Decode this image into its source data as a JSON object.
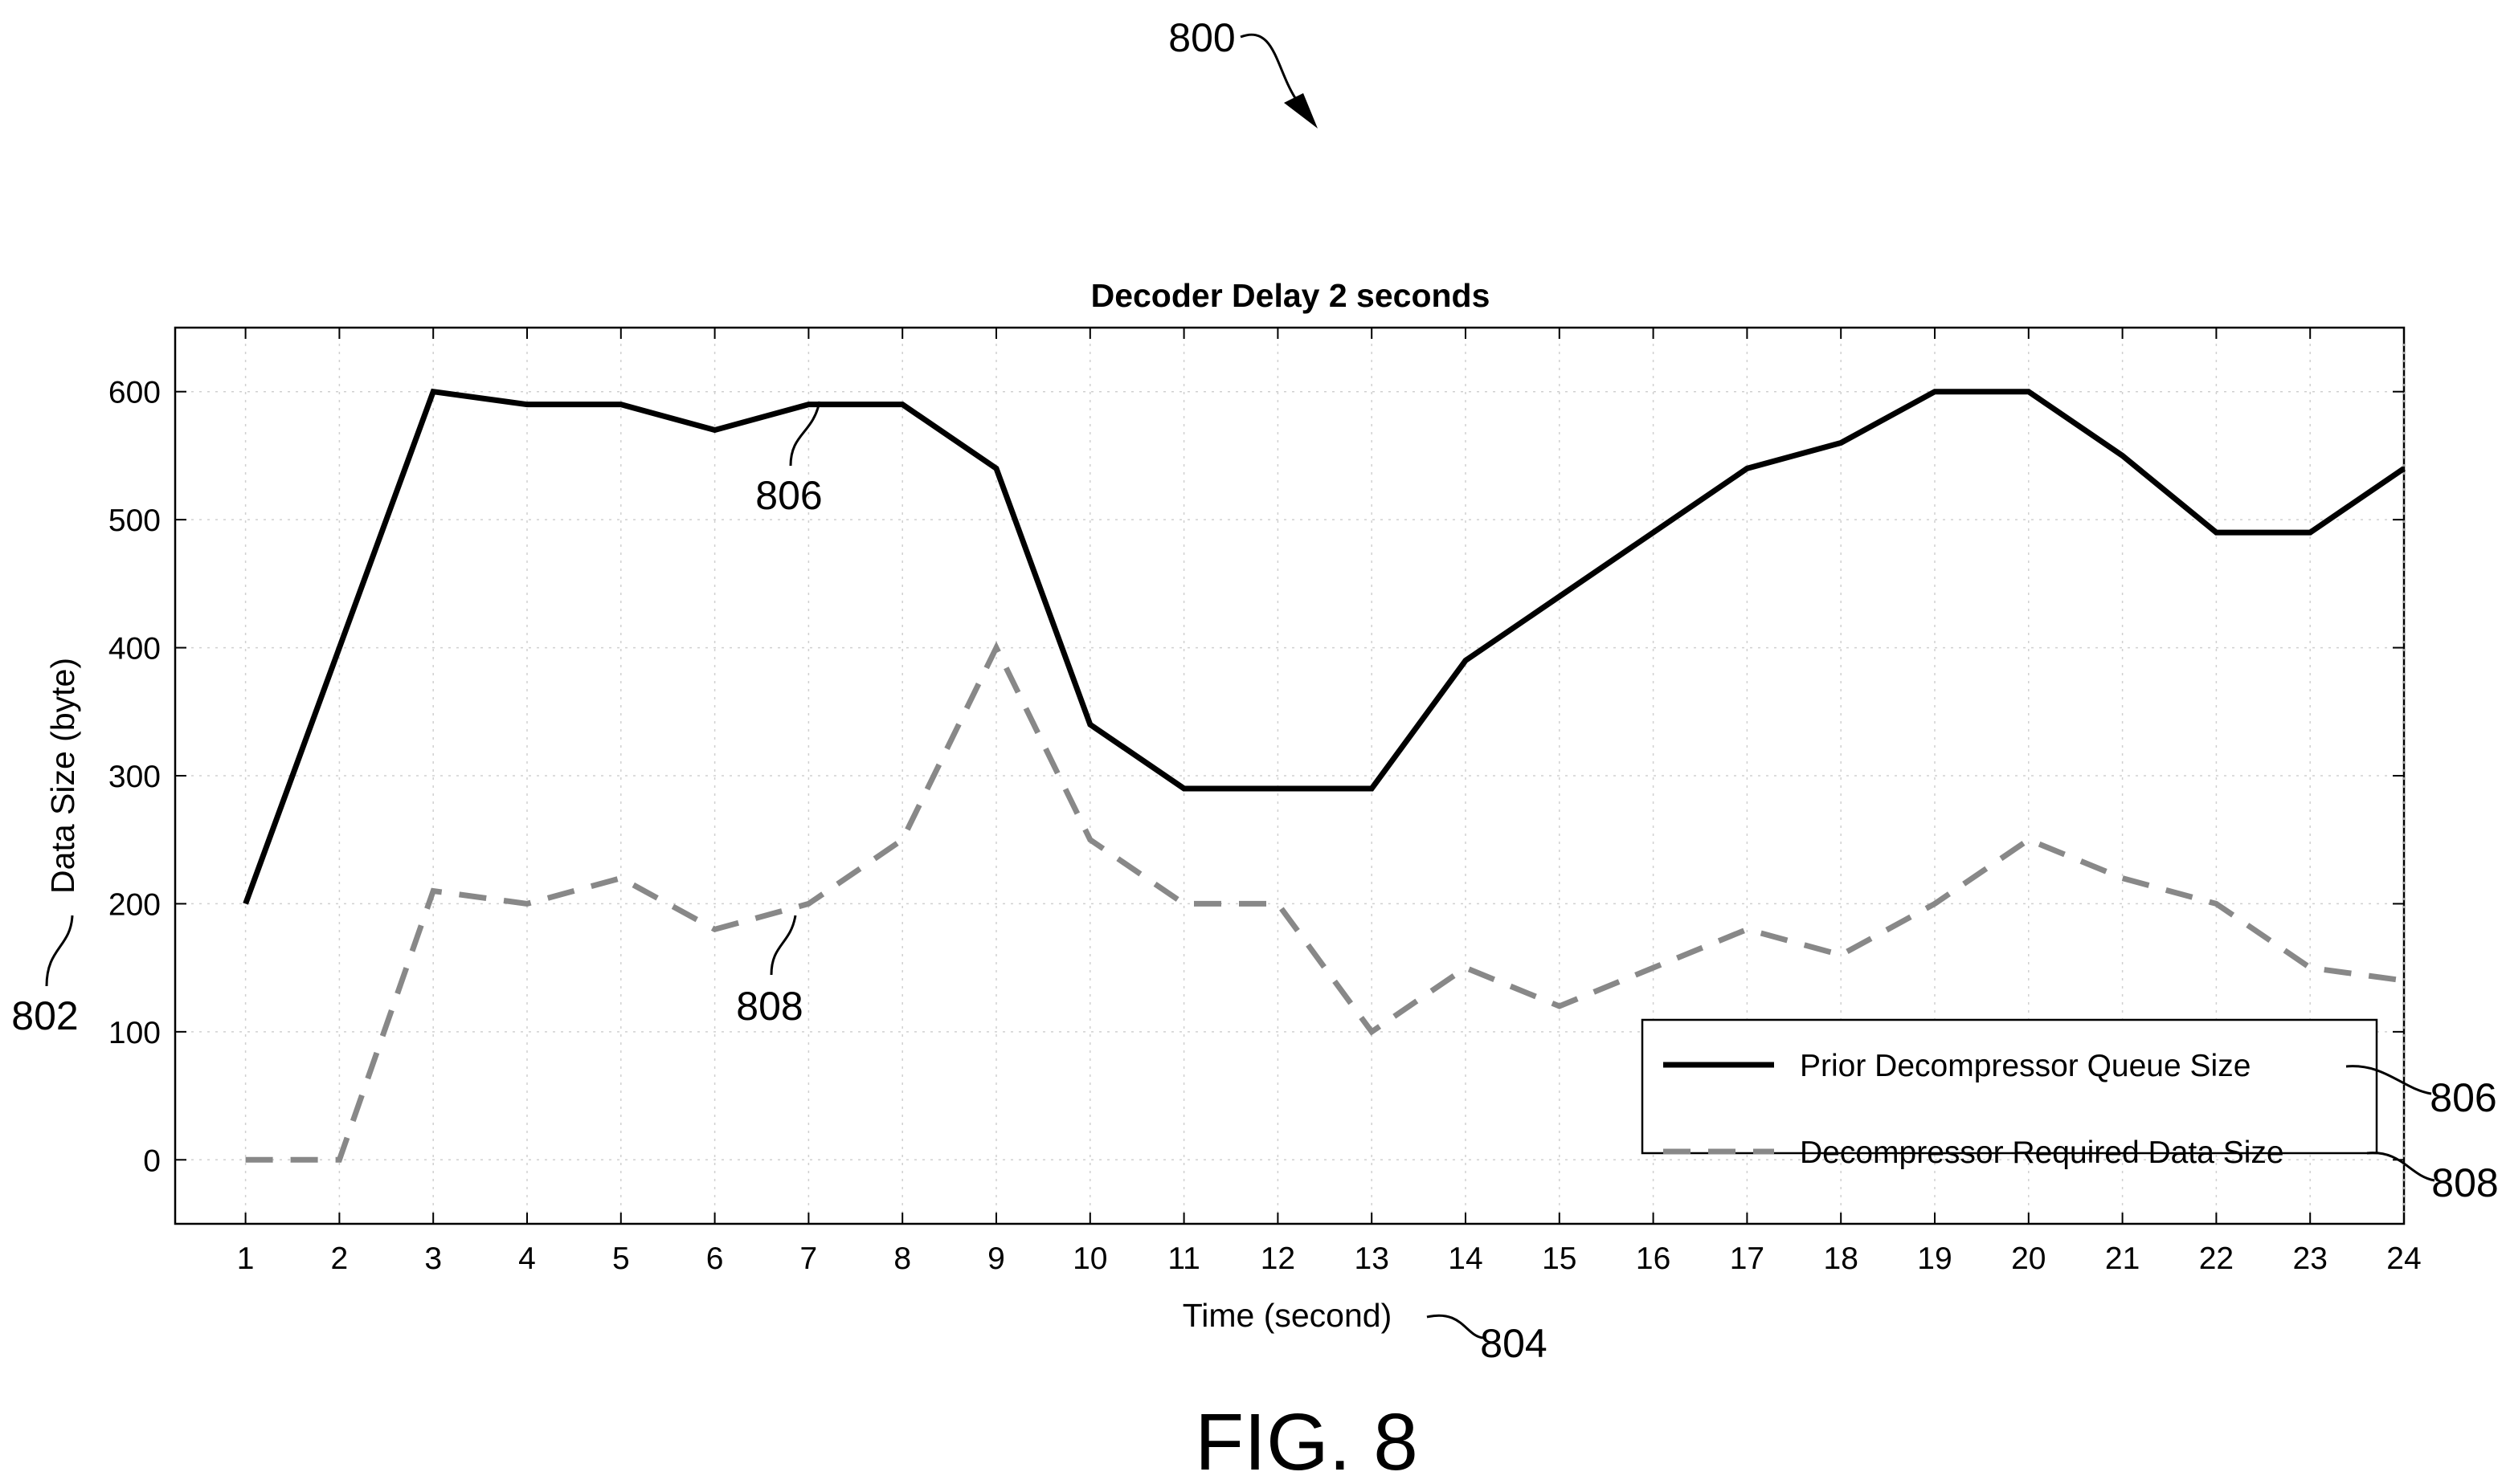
{
  "figure": {
    "number_label": "FIG. 8",
    "reference_numerals": {
      "figure": "800",
      "y_axis": "802",
      "x_axis": "804",
      "queue_line": "806",
      "required_line": "808",
      "legend_queue": "806",
      "legend_required": "808"
    }
  },
  "chart_data": {
    "type": "line",
    "title": "Decoder Delay 2 seconds",
    "xlabel": "Time (second)",
    "ylabel": "Data Size (byte)",
    "x": [
      1,
      2,
      3,
      4,
      5,
      6,
      7,
      8,
      9,
      10,
      11,
      12,
      13,
      14,
      15,
      16,
      17,
      18,
      19,
      20,
      21,
      22,
      23,
      24
    ],
    "xlim": [
      0.25,
      24
    ],
    "ylim": [
      -50,
      650
    ],
    "xticks": [
      "1",
      "2",
      "3",
      "4",
      "5",
      "6",
      "7",
      "8",
      "9",
      "10",
      "11",
      "12",
      "13",
      "14",
      "15",
      "16",
      "17",
      "18",
      "19",
      "20",
      "21",
      "22",
      "23",
      "24"
    ],
    "yticks": [
      "0",
      "100",
      "200",
      "300",
      "400",
      "500",
      "600"
    ],
    "grid": true,
    "legend_position": "lower-right",
    "series": [
      {
        "name": "Prior Decompressor Queue Size",
        "style": "solid",
        "color": "#000000",
        "values": [
          200,
          400,
          600,
          590,
          590,
          570,
          590,
          590,
          540,
          340,
          290,
          290,
          290,
          390,
          440,
          490,
          540,
          560,
          600,
          600,
          550,
          490,
          490,
          540
        ]
      },
      {
        "name": "Decompressor Required Data Size",
        "style": "dashed",
        "color": "#808080",
        "values": [
          0,
          0,
          210,
          200,
          220,
          180,
          200,
          250,
          400,
          250,
          200,
          200,
          100,
          150,
          120,
          150,
          180,
          160,
          200,
          250,
          220,
          200,
          150,
          140
        ]
      }
    ]
  }
}
